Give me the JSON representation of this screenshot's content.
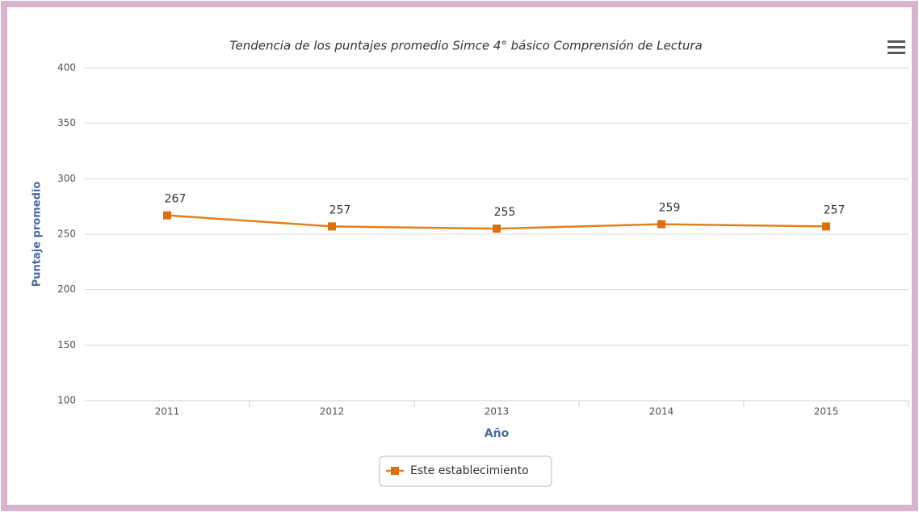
{
  "chart_data": {
    "type": "line",
    "title": "Tendencia de los puntajes promedio Simce 4° básico Comprensión de Lectura",
    "x_label": "Año",
    "y_label": "Puntaje promedio",
    "categories": [
      "2011",
      "2012",
      "2013",
      "2014",
      "2015"
    ],
    "series": [
      {
        "name": "Este establecimiento",
        "color": "#e3801c",
        "marker_color": "#d9700d",
        "values": [
          267,
          257,
          255,
          259,
          257
        ]
      }
    ],
    "ylim": [
      100,
      400
    ],
    "yticks": [
      100,
      150,
      200,
      250,
      300,
      350,
      400
    ],
    "grid": true,
    "legend": "bottom",
    "data_labels": true
  }
}
